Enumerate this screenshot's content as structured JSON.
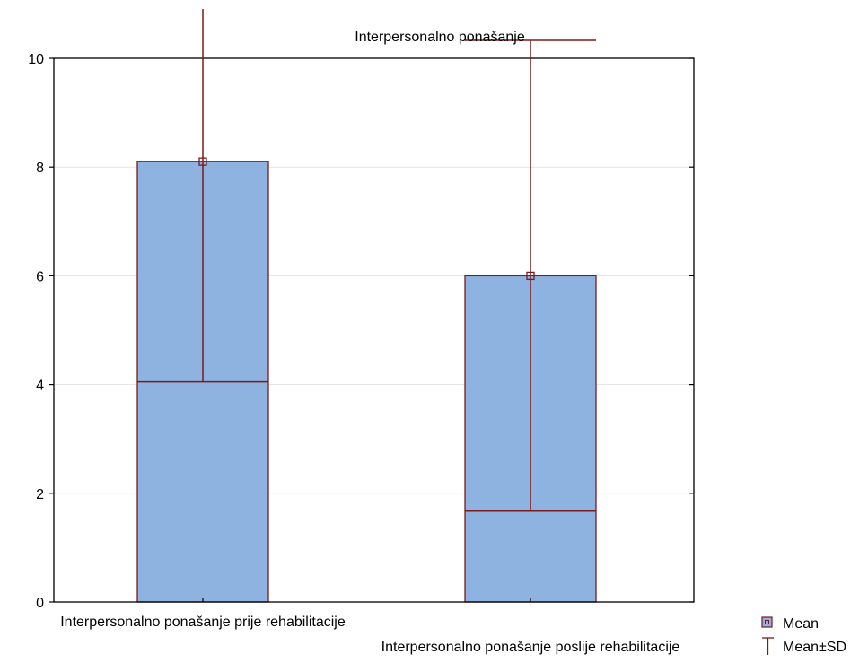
{
  "chart_data": {
    "type": "bar",
    "title": "Interpersonalno ponašanje",
    "categories": [
      "Interpersonalno ponašanje prije rehabilitacije",
      "Interpersonalno ponašanje poslije rehabilitacije"
    ],
    "series": [
      {
        "name": "Mean",
        "values": [
          4.05,
          1.67
        ]
      }
    ],
    "error_bars": {
      "name": "Mean±SD",
      "sd": [
        4.05,
        4.33
      ],
      "lower": [
        0,
        0
      ],
      "upper": [
        8.1,
        6.0
      ],
      "whisker_upper": [
        12.15,
        10.33
      ]
    },
    "ylim": [
      0,
      10
    ],
    "yticks": [
      0,
      2,
      4,
      6,
      8,
      10
    ],
    "xlabel": "",
    "ylabel": "",
    "grid": true,
    "legend_position": "bottom-right",
    "colors": {
      "box_fill": "#8fb3e1",
      "box_stroke": "#7a1a1a",
      "grid": "#e3e3e3",
      "axis": "#000000"
    }
  },
  "legend": {
    "mean_label": "Mean",
    "sd_label": "Mean±SD"
  }
}
